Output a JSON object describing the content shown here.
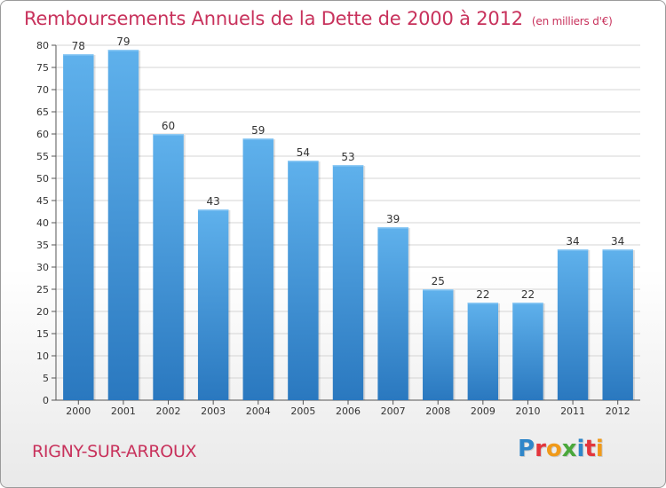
{
  "chart_data": {
    "type": "bar",
    "title": "Remboursements Annuels de la Dette de 2000 à 2012",
    "subtitle": "(en milliers d'€)",
    "categories": [
      "2000",
      "2001",
      "2002",
      "2003",
      "2004",
      "2005",
      "2006",
      "2007",
      "2008",
      "2009",
      "2010",
      "2011",
      "2012"
    ],
    "values": [
      78,
      79,
      60,
      43,
      59,
      54,
      53,
      39,
      25,
      22,
      22,
      34,
      34
    ],
    "xlabel": "",
    "ylabel": "",
    "ylim": [
      0,
      80
    ],
    "ytick_step": 5,
    "grid": true,
    "colors": {
      "bar_top": "#5fb1ec",
      "bar_bottom": "#2a78bf",
      "title": "#c8325c",
      "grid": "#d4d4d4"
    }
  },
  "footer": {
    "commune": "RIGNY-SUR-ARROUX",
    "logo_letters": [
      {
        "ch": "P",
        "color": "#2f86c9"
      },
      {
        "ch": "r",
        "color": "#e3353c"
      },
      {
        "ch": "o",
        "color": "#f09a1a"
      },
      {
        "ch": "x",
        "color": "#4aa83b"
      },
      {
        "ch": "i",
        "color": "#2f86c9"
      },
      {
        "ch": "t",
        "color": "#e3353c"
      },
      {
        "ch": "i",
        "color": "#f09a1a"
      }
    ]
  }
}
